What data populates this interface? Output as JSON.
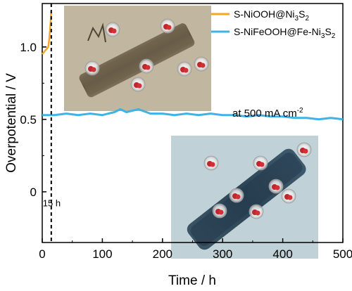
{
  "chart_data": {
    "type": "line",
    "xlabel": "Time / h",
    "ylabel": "Overpotential / V",
    "xlim": [
      0,
      500
    ],
    "ylim": [
      -0.35,
      1.3
    ],
    "xticks": [
      0,
      100,
      200,
      300,
      400,
      500
    ],
    "yticks": [
      0,
      0.5,
      1.0
    ],
    "ytick_labels": [
      "0",
      "0.5",
      "1.0"
    ],
    "grid": false,
    "legend_position": "top-right",
    "series": [
      {
        "name_parts": [
          "S-NiOOH@Ni",
          "3",
          "S",
          "2"
        ],
        "color": "#f5a623",
        "x": [
          0,
          2,
          4,
          6,
          8,
          10,
          11,
          12,
          13,
          14,
          15
        ],
        "y": [
          0.95,
          0.96,
          0.97,
          0.98,
          0.99,
          1.0,
          1.03,
          1.07,
          1.12,
          1.18,
          1.25
        ]
      },
      {
        "name_parts": [
          "S-NiFeOOH@Fe-Ni",
          "3",
          "S",
          "2"
        ],
        "color": "#3fb3e6",
        "x": [
          0,
          20,
          40,
          60,
          80,
          100,
          120,
          130,
          140,
          160,
          180,
          200,
          220,
          240,
          260,
          280,
          300,
          320,
          340,
          360,
          380,
          400,
          420,
          440,
          460,
          480,
          500
        ],
        "y": [
          0.53,
          0.53,
          0.54,
          0.53,
          0.54,
          0.53,
          0.55,
          0.57,
          0.55,
          0.57,
          0.54,
          0.54,
          0.53,
          0.54,
          0.53,
          0.54,
          0.53,
          0.53,
          0.52,
          0.53,
          0.52,
          0.52,
          0.51,
          0.51,
          0.5,
          0.51,
          0.5
        ]
      }
    ],
    "annotations": {
      "vline_x": 15,
      "vline_label": "15 h",
      "current_prefix": "at 500 mA cm",
      "current_sup": "-2"
    }
  }
}
